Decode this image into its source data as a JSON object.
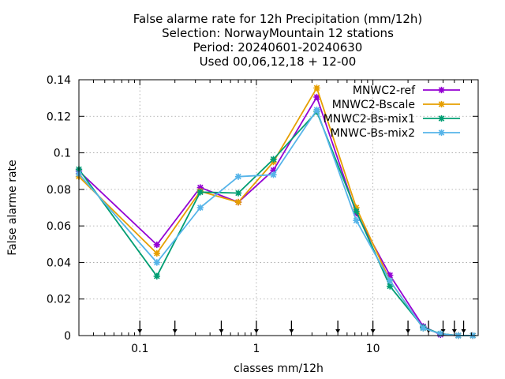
{
  "chart_data": {
    "type": "line",
    "title_lines": [
      "False alarme rate  for 12h Precipitation (mm/12h)",
      "Selection: NorwayMountain     12 stations",
      "Period: 20240601-20240630",
      "Used 00,06,12,18 + 12-00"
    ],
    "xlabel": "classes mm/12h",
    "ylabel": "False alarme rate",
    "x_scale": "log",
    "xlim": [
      0.03,
      80
    ],
    "ylim": [
      0,
      0.14
    ],
    "x_ticks": [
      0.1,
      1,
      10
    ],
    "x_tick_labels": [
      "0.1",
      "1",
      "10"
    ],
    "y_ticks": [
      0,
      0.02,
      0.04,
      0.06,
      0.08,
      0.1,
      0.12,
      0.14
    ],
    "y_tick_labels": [
      "0",
      "0.02",
      "0.04",
      "0.06",
      "0.08",
      "0.1",
      "0.12",
      "0.14"
    ],
    "grid": true,
    "legend_position": "top-right",
    "threshold_arrows": [
      0.1,
      0.2,
      0.5,
      1,
      2,
      5,
      10,
      20,
      30,
      40,
      50,
      60
    ],
    "x": [
      0.03,
      0.14,
      0.33,
      0.7,
      1.4,
      3.3,
      7.2,
      14,
      27,
      38,
      54,
      72
    ],
    "series": [
      {
        "name": "MNWC2-ref",
        "color": "#9400d3",
        "values": [
          0.09,
          0.0497,
          0.081,
          0.073,
          0.0905,
          0.1305,
          0.067,
          0.033,
          0.005,
          0.0005,
          0.0,
          0.0
        ]
      },
      {
        "name": "MNWC2-Bscale",
        "color": "#e69f00",
        "values": [
          0.087,
          0.045,
          0.079,
          0.073,
          0.095,
          0.1355,
          0.07,
          0.03,
          0.004,
          0.001,
          0.0,
          0.0
        ]
      },
      {
        "name": "MNWC2-Bs-mix1",
        "color": "#009e73",
        "values": [
          0.091,
          0.0325,
          0.0785,
          0.078,
          0.0965,
          0.1225,
          0.068,
          0.027,
          0.0045,
          0.001,
          0.0,
          0.0
        ]
      },
      {
        "name": "MNWC-Bs-mix2",
        "color": "#56b4e9",
        "values": [
          0.0885,
          0.04,
          0.07,
          0.087,
          0.088,
          0.1235,
          0.063,
          0.03,
          0.004,
          0.001,
          0.0,
          0.0
        ]
      }
    ]
  }
}
